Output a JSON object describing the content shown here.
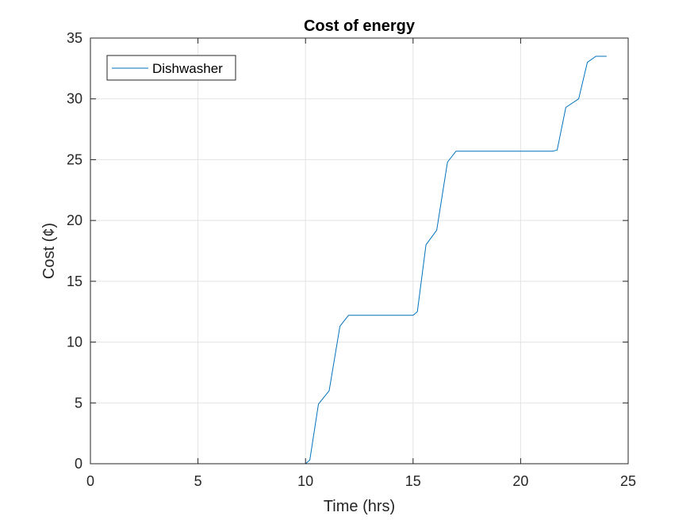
{
  "chart_data": {
    "type": "line",
    "title": "Cost of energy",
    "xlabel": "Time (hrs)",
    "ylabel": "Cost (¢)",
    "xlim": [
      0,
      25
    ],
    "ylim": [
      0,
      35
    ],
    "xticks": [
      0,
      5,
      10,
      15,
      20,
      25
    ],
    "yticks": [
      0,
      5,
      10,
      15,
      20,
      25,
      30,
      35
    ],
    "grid": true,
    "legend_position": "top-left",
    "series": [
      {
        "name": "Dishwasher",
        "color": "#0072BD",
        "x": [
          0,
          10,
          10.2,
          10.6,
          11.1,
          11.6,
          12.0,
          15.0,
          15.2,
          15.6,
          16.1,
          16.6,
          17.0,
          21.5,
          21.7,
          22.1,
          22.7,
          23.1,
          23.5,
          24.0
        ],
        "y": [
          0,
          0,
          0.3,
          4.9,
          6.0,
          11.3,
          12.2,
          12.2,
          12.5,
          18.0,
          19.2,
          24.8,
          25.7,
          25.7,
          25.8,
          29.3,
          30.0,
          33.0,
          33.5,
          33.5
        ]
      }
    ]
  }
}
